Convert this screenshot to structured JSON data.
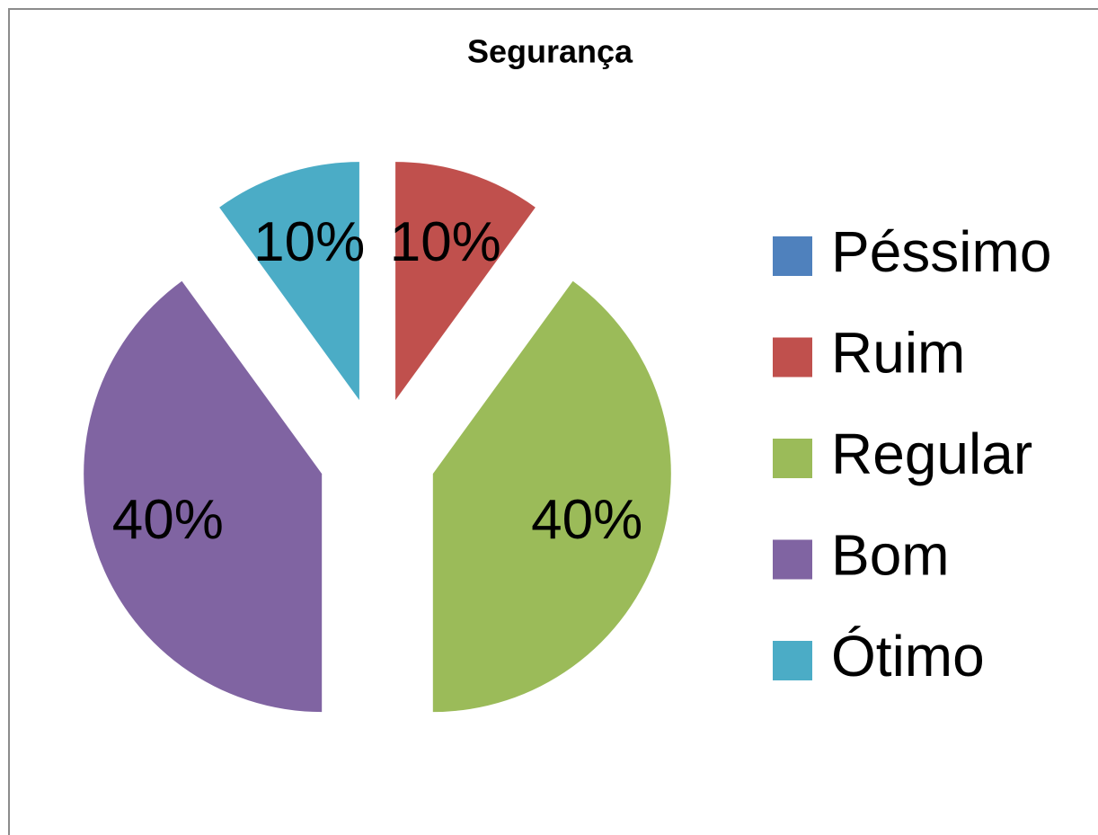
{
  "chart_data": {
    "type": "pie",
    "title": "Segurança",
    "categories": [
      "Péssimo",
      "Ruim",
      "Regular",
      "Bom",
      "Ótimo"
    ],
    "values": [
      0,
      10,
      40,
      40,
      10
    ],
    "value_labels": [
      null,
      "10%",
      "40%",
      "40%",
      "10%"
    ],
    "colors": [
      "#4f81bd",
      "#c0504d",
      "#9bbb59",
      "#8064a2",
      "#4bacc6"
    ],
    "exploded": true,
    "legend": "right"
  }
}
